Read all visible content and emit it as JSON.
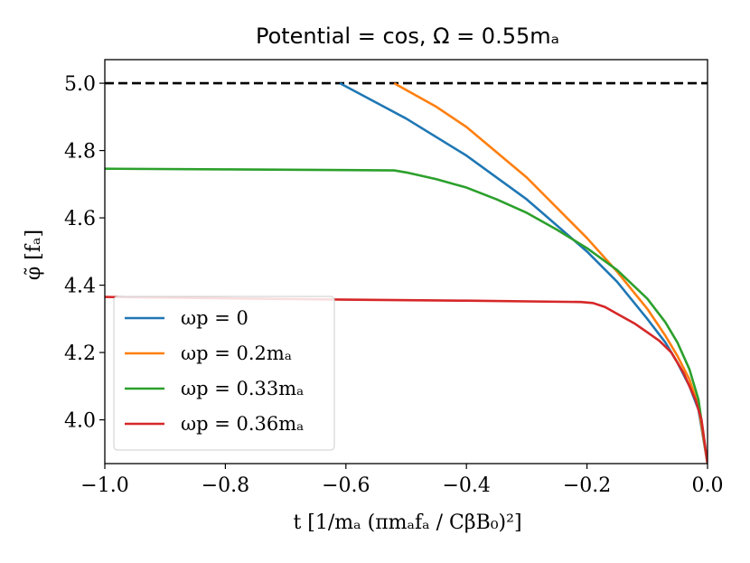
{
  "chart_data": {
    "type": "line",
    "title": "Potential = cos, Ω = 0.55mₐ",
    "xlabel": "t [1/mₐ (πmₐfₐ / CβB₀)²]",
    "ylabel": "φ̃ [fₐ]",
    "xlim": [
      -1.0,
      0.0
    ],
    "ylim": [
      3.87,
      5.07
    ],
    "x_ticks": [
      -1.0,
      -0.8,
      -0.6,
      -0.4,
      -0.2,
      0.0
    ],
    "x_tick_labels": [
      "−1.0",
      "−0.8",
      "−0.6",
      "−0.4",
      "−0.2",
      "0.0"
    ],
    "y_ticks": [
      4.0,
      4.2,
      4.4,
      4.6,
      4.8,
      5.0
    ],
    "y_tick_labels": [
      "4.0",
      "4.2",
      "4.4",
      "4.6",
      "4.8",
      "5.0"
    ],
    "grid": false,
    "legend_position": "lower-left",
    "reference_line": {
      "y": 5.0,
      "style": "dashed",
      "color": "#000000"
    },
    "series": [
      {
        "name": "ωp = 0",
        "color": "#1f77b4",
        "points": [
          [
            -0.61,
            5.0
          ],
          [
            -0.5,
            4.895
          ],
          [
            -0.4,
            4.785
          ],
          [
            -0.3,
            4.655
          ],
          [
            -0.2,
            4.5
          ],
          [
            -0.15,
            4.41
          ],
          [
            -0.1,
            4.3
          ],
          [
            -0.07,
            4.23
          ],
          [
            -0.05,
            4.17
          ],
          [
            -0.03,
            4.1
          ],
          [
            -0.015,
            4.03
          ],
          [
            0.0,
            3.87
          ]
        ]
      },
      {
        "name": "ωp = 0.2mₐ",
        "color": "#ff7f0e",
        "points": [
          [
            -0.52,
            5.0
          ],
          [
            -0.45,
            4.93
          ],
          [
            -0.4,
            4.87
          ],
          [
            -0.3,
            4.72
          ],
          [
            -0.2,
            4.54
          ],
          [
            -0.15,
            4.44
          ],
          [
            -0.1,
            4.33
          ],
          [
            -0.07,
            4.25
          ],
          [
            -0.05,
            4.19
          ],
          [
            -0.03,
            4.12
          ],
          [
            -0.015,
            4.04
          ],
          [
            0.0,
            3.87
          ]
        ]
      },
      {
        "name": "ωp = 0.33mₐ",
        "color": "#2ca02c",
        "points": [
          [
            -1.0,
            4.746
          ],
          [
            -0.8,
            4.744
          ],
          [
            -0.6,
            4.742
          ],
          [
            -0.52,
            4.741
          ],
          [
            -0.5,
            4.735
          ],
          [
            -0.45,
            4.715
          ],
          [
            -0.4,
            4.69
          ],
          [
            -0.35,
            4.655
          ],
          [
            -0.3,
            4.615
          ],
          [
            -0.25,
            4.565
          ],
          [
            -0.2,
            4.51
          ],
          [
            -0.15,
            4.445
          ],
          [
            -0.1,
            4.36
          ],
          [
            -0.07,
            4.29
          ],
          [
            -0.05,
            4.23
          ],
          [
            -0.03,
            4.15
          ],
          [
            -0.015,
            4.06
          ],
          [
            0.0,
            3.87
          ]
        ]
      },
      {
        "name": "ωp = 0.36mₐ",
        "color": "#d62728",
        "points": [
          [
            -1.0,
            4.365
          ],
          [
            -0.8,
            4.361
          ],
          [
            -0.6,
            4.357
          ],
          [
            -0.4,
            4.354
          ],
          [
            -0.21,
            4.35
          ],
          [
            -0.19,
            4.347
          ],
          [
            -0.17,
            4.335
          ],
          [
            -0.15,
            4.315
          ],
          [
            -0.12,
            4.285
          ],
          [
            -0.1,
            4.26
          ],
          [
            -0.08,
            4.235
          ],
          [
            -0.06,
            4.2
          ],
          [
            -0.04,
            4.14
          ],
          [
            -0.02,
            4.06
          ],
          [
            -0.01,
            4.0
          ],
          [
            0.0,
            3.87
          ]
        ]
      }
    ]
  }
}
